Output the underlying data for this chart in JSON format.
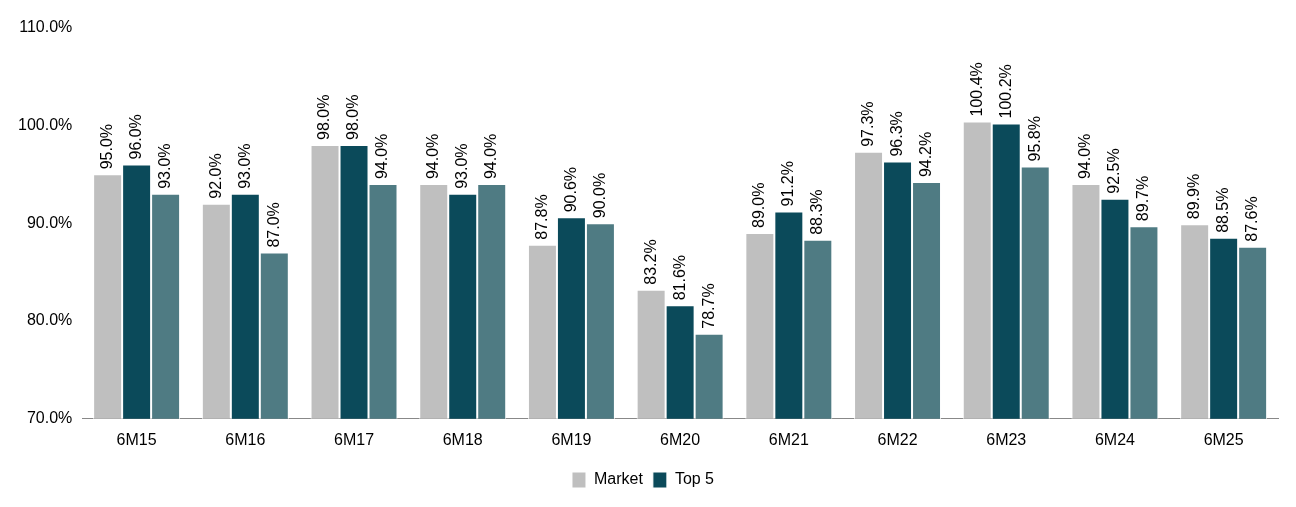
{
  "chart_data": {
    "type": "bar",
    "categories": [
      "6M15",
      "6M16",
      "6M17",
      "6M18",
      "6M19",
      "6M20",
      "6M21",
      "6M22",
      "6M23",
      "6M24",
      "6M25"
    ],
    "series": [
      {
        "name": "Market",
        "color": "#bfbfbf",
        "values": [
          95.0,
          92.0,
          98.0,
          94.0,
          87.8,
          83.2,
          89.0,
          97.3,
          100.4,
          94.0,
          89.9
        ],
        "value_labels": [
          "95.0%",
          "92.0%",
          "98.0%",
          "94.0%",
          "87.8%",
          "83.2%",
          "89.0%",
          "97.3%",
          "100.4%",
          "94.0%",
          "89.9%"
        ]
      },
      {
        "name": "Top 5",
        "color": "#0b4a5a",
        "values": [
          96.0,
          93.0,
          98.0,
          93.0,
          90.6,
          81.6,
          91.2,
          96.3,
          100.2,
          92.5,
          88.5
        ],
        "value_labels": [
          "96.0%",
          "93.0%",
          "98.0%",
          "93.0%",
          "90.6%",
          "81.6%",
          "91.2%",
          "96.3%",
          "100.2%",
          "92.5%",
          "88.5%"
        ]
      },
      {
        "color": "#4f7b83",
        "values": [
          93.0,
          87.0,
          94.0,
          94.0,
          90.0,
          78.7,
          88.3,
          94.2,
          95.8,
          89.7,
          87.6
        ],
        "value_labels": [
          "93.0%",
          "87.0%",
          "94.0%",
          "94.0%",
          "90.0%",
          "78.7%",
          "88.3%",
          "94.2%",
          "95.8%",
          "89.7%",
          "87.6%"
        ]
      }
    ],
    "ylim": [
      70,
      110
    ],
    "yticks": [
      {
        "value": 70,
        "label": "70.0%"
      },
      {
        "value": 80,
        "label": "80.0%"
      },
      {
        "value": 90,
        "label": "90.0%"
      },
      {
        "value": 100,
        "label": "100.0%"
      },
      {
        "value": 110,
        "label": "110.0%"
      }
    ],
    "grid": false,
    "legend": "bottom"
  }
}
